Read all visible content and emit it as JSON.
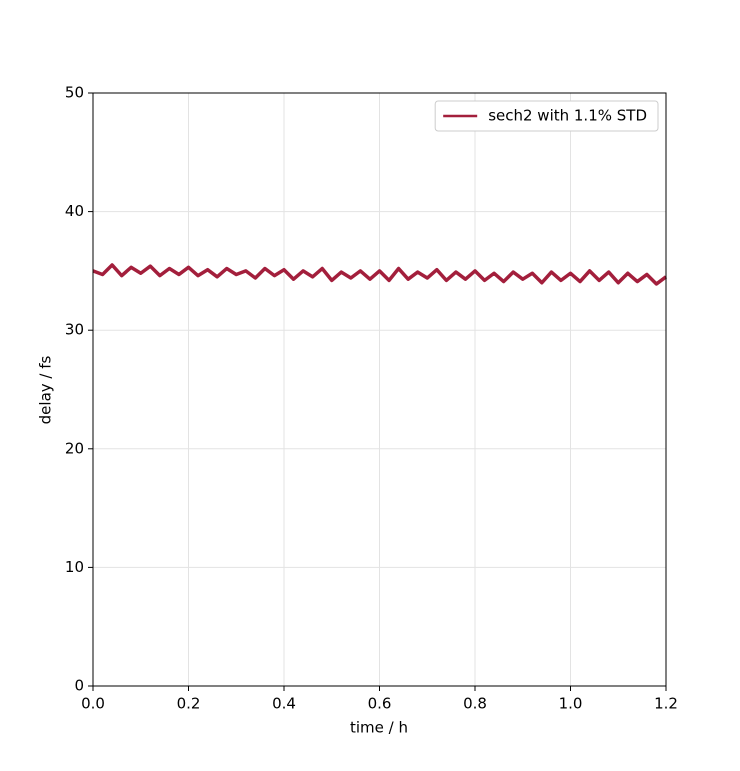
{
  "chart_data": {
    "type": "line",
    "xlabel": "time / h",
    "ylabel": "delay / fs",
    "x": [
      0,
      0.02,
      0.04,
      0.06,
      0.08,
      0.1,
      0.12,
      0.14,
      0.16,
      0.18,
      0.2,
      0.22,
      0.24,
      0.26,
      0.28,
      0.3,
      0.32,
      0.34,
      0.36,
      0.38,
      0.4,
      0.42,
      0.44,
      0.46,
      0.48,
      0.5,
      0.52,
      0.54,
      0.56,
      0.58,
      0.6,
      0.62,
      0.64,
      0.66,
      0.68,
      0.7,
      0.72,
      0.74,
      0.76,
      0.78,
      0.8,
      0.82,
      0.84,
      0.86,
      0.88,
      0.9,
      0.92,
      0.94,
      0.96,
      0.98,
      1.0,
      1.02,
      1.04,
      1.06,
      1.08,
      1.1,
      1.12,
      1.14,
      1.16,
      1.18,
      1.2
    ],
    "series": [
      {
        "name": "sech2 with 1.1% STD",
        "color": "#a31f3c",
        "values": [
          35.0,
          34.7,
          35.5,
          34.6,
          35.3,
          34.8,
          35.4,
          34.6,
          35.2,
          34.7,
          35.3,
          34.6,
          35.1,
          34.5,
          35.2,
          34.7,
          35.0,
          34.4,
          35.2,
          34.6,
          35.1,
          34.3,
          35.0,
          34.5,
          35.2,
          34.2,
          34.9,
          34.4,
          35.0,
          34.3,
          35.0,
          34.2,
          35.2,
          34.3,
          34.9,
          34.4,
          35.1,
          34.2,
          34.9,
          34.3,
          35.0,
          34.2,
          34.8,
          34.1,
          34.9,
          34.3,
          34.8,
          34.0,
          34.9,
          34.2,
          34.8,
          34.1,
          35.0,
          34.2,
          34.9,
          34.0,
          34.8,
          34.1,
          34.7,
          33.9,
          34.5
        ]
      }
    ],
    "xlim": [
      0,
      1.2
    ],
    "xticks": [
      {
        "value": 0,
        "label": "0.0"
      },
      0.2,
      0.4,
      0.6,
      0.8,
      {
        "value": 1,
        "label": "1.0"
      },
      1.2
    ],
    "ylim": [
      0,
      50
    ],
    "yticks": [
      0,
      10,
      20,
      30,
      40,
      50
    ],
    "grid": true,
    "legend": "upper right"
  }
}
